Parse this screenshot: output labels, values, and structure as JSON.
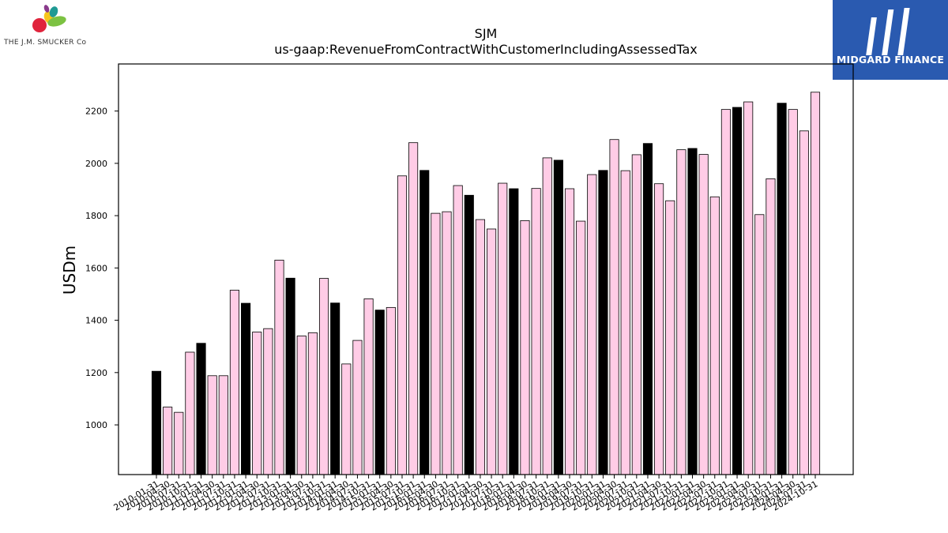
{
  "logos": {
    "left_company": "THE J.M. SMUCKER Co",
    "right_brand": "MIDGARD FINANCE"
  },
  "colors": {
    "highlight_bar": "#000000",
    "normal_bar": "#ffcce6",
    "bar_edge": "#000000",
    "brand_blue": "#2a5ab0"
  },
  "chart_data": {
    "type": "bar",
    "title": "SJM",
    "subtitle": "us-gaap:RevenueFromContractWithCustomerIncludingAssessedTax",
    "xlabel": "",
    "ylabel": "USDm",
    "ylim": [
      810,
      2380
    ],
    "yticks": [
      1000,
      1200,
      1400,
      1600,
      1800,
      2000,
      2200
    ],
    "grid": false,
    "categories": [
      "2010-01-31",
      "2010-04-30",
      "2010-07-31",
      "2010-10-31",
      "2011-01-31",
      "2011-04-30",
      "2011-07-31",
      "2011-10-31",
      "2012-01-31",
      "2012-04-30",
      "2012-07-31",
      "2012-10-31",
      "2013-01-31",
      "2013-04-30",
      "2013-07-31",
      "2013-10-31",
      "2014-01-31",
      "2014-04-30",
      "2014-07-31",
      "2014-10-31",
      "2015-01-31",
      "2015-04-30",
      "2015-07-31",
      "2015-10-31",
      "2016-01-31",
      "2016-04-30",
      "2016-07-31",
      "2016-10-31",
      "2017-01-31",
      "2017-04-30",
      "2017-07-31",
      "2017-10-31",
      "2018-01-31",
      "2018-04-30",
      "2018-07-31",
      "2018-10-31",
      "2019-01-31",
      "2019-04-30",
      "2019-07-31",
      "2019-10-31",
      "2020-01-31",
      "2020-04-30",
      "2020-07-31",
      "2020-10-31",
      "2021-01-31",
      "2021-04-30",
      "2021-07-31",
      "2021-10-31",
      "2022-01-31",
      "2022-04-30",
      "2022-07-31",
      "2022-10-31",
      "2023-01-31",
      "2023-04-30",
      "2023-07-31",
      "2023-10-31",
      "2024-01-31",
      "2024-04-30",
      "2024-07-31",
      "2024-10-31"
    ],
    "values": [
      1205,
      1068,
      1048,
      1278,
      1312,
      1188,
      1188,
      1515,
      1465,
      1355,
      1368,
      1630,
      1561,
      1340,
      1352,
      1560,
      1466,
      1233,
      1323,
      1482,
      1439,
      1449,
      1952,
      2079,
      1973,
      1809,
      1815,
      1915,
      1878,
      1785,
      1749,
      1924,
      1903,
      1781,
      1904,
      2021,
      2012,
      1903,
      1779,
      1957,
      1973,
      2091,
      1972,
      2033,
      2076,
      1922,
      1857,
      2052,
      2057,
      2034,
      1872,
      2206,
      2214,
      2235,
      1804,
      1941,
      2230,
      2206,
      2124,
      2272
    ],
    "highlight_every": 4,
    "highlight_offset": 0,
    "tick_labels_shown": [
      "2010-01-31",
      "2010-04-30",
      "2010-07-31",
      "2010-10-31",
      "2011-01-31",
      "2011-04-30",
      "2011-07-31",
      "2011-10-31",
      "2012-01-31",
      "2012-04-30",
      "2012-07-31",
      "2012-10-31",
      "2013-01-31",
      "2013-04-30",
      "2013-07-31",
      "2013-10-31",
      "2014-01-31",
      "2014-04-30",
      "2014-07-31",
      "2014-10-31",
      "2015-01-31",
      "2015-04-30",
      "2015-07-31",
      "2015-10-31",
      "2016-01-31",
      "2016-04-30",
      "2016-07-31",
      "2016-10-31",
      "2017-01-31",
      "2017-04-30",
      "2017-07-31",
      "2017-10-31",
      "2018-01-31",
      "2018-04-30",
      "2018-07-31",
      "2018-10-31",
      "2019-01-31",
      "2019-04-30",
      "2019-07-31",
      "2019-10-31",
      "2020-01-31",
      "2020-04-30",
      "2020-07-31",
      "2020-10-31",
      "2021-01-31",
      "2021-04-30",
      "2021-07-31",
      "2021-10-31",
      "2022-01-31",
      "2022-04-30",
      "2022-07-31",
      "2022-10-31",
      "2023-01-31",
      "2023-04-30",
      "2023-07-31",
      "2023-10-31",
      "2024-01-31",
      "2024-04-30",
      "2024-07-31",
      "2024-10-31"
    ]
  }
}
